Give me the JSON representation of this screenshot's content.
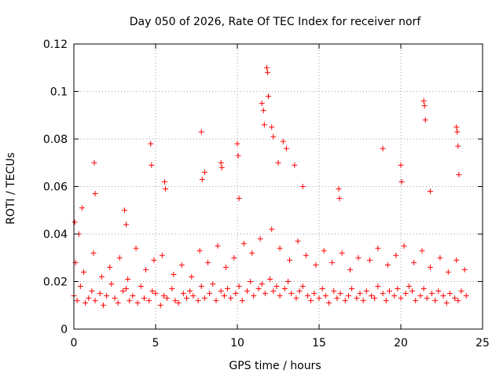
{
  "chart_data": {
    "type": "scatter",
    "title": "Day 050 of 2026, Rate Of TEC Index for receiver norf",
    "xlabel": "GPS time / hours",
    "ylabel": "ROTI / TECUs",
    "xlim": [
      0,
      25
    ],
    "ylim": [
      0,
      0.12
    ],
    "x_ticks": [
      0,
      5,
      10,
      15,
      20,
      25
    ],
    "x_tick_labels": [
      "0",
      "5",
      "10",
      "15",
      "20",
      "25"
    ],
    "y_ticks": [
      0,
      0.02,
      0.04,
      0.06,
      0.08,
      0.1,
      0.12
    ],
    "y_tick_labels": [
      "0",
      "0.02",
      "0.04",
      "0.06",
      "0.08",
      "0.1",
      "0.12"
    ],
    "grid": true,
    "marker": "+",
    "marker_color": "#ff0000",
    "series": [
      {
        "name": "ROTI",
        "x": [
          0.0,
          0.2,
          0.4,
          0.7,
          0.9,
          1.1,
          1.3,
          1.6,
          1.8,
          2.0,
          2.3,
          2.5,
          2.7,
          3.0,
          3.2,
          3.4,
          3.6,
          3.9,
          4.1,
          4.3,
          4.6,
          4.8,
          5.0,
          5.3,
          5.5,
          5.7,
          6.0,
          6.2,
          6.4,
          6.7,
          6.9,
          7.1,
          7.3,
          7.6,
          7.8,
          8.0,
          8.3,
          8.5,
          8.7,
          9.0,
          9.2,
          9.4,
          9.6,
          9.9,
          10.1,
          10.3,
          10.6,
          10.8,
          11.0,
          11.3,
          11.5,
          11.7,
          12.0,
          12.2,
          12.4,
          12.6,
          12.9,
          13.1,
          13.3,
          13.6,
          13.8,
          14.0,
          14.3,
          14.5,
          14.7,
          15.0,
          15.2,
          15.4,
          15.6,
          15.9,
          16.1,
          16.3,
          16.6,
          16.8,
          17.0,
          17.3,
          17.5,
          17.7,
          17.9,
          18.2,
          18.4,
          18.6,
          18.9,
          19.1,
          19.3,
          19.6,
          19.8,
          20.0,
          20.3,
          20.5,
          20.7,
          20.9,
          21.2,
          21.4,
          21.6,
          21.9,
          22.1,
          22.3,
          22.6,
          22.8,
          23.0,
          23.3,
          23.5,
          23.7,
          24.0,
          0.1,
          0.6,
          1.2,
          1.7,
          2.2,
          2.8,
          3.3,
          3.8,
          4.4,
          4.9,
          5.4,
          6.1,
          6.6,
          7.2,
          7.7,
          8.2,
          8.8,
          9.3,
          9.8,
          10.4,
          10.9,
          11.4,
          12.1,
          12.6,
          13.2,
          13.7,
          14.2,
          14.8,
          15.3,
          15.8,
          16.4,
          16.9,
          17.4,
          18.1,
          18.6,
          19.2,
          19.7,
          20.2,
          20.8,
          21.3,
          21.8,
          22.4,
          22.9,
          23.4,
          23.9,
          0.05,
          0.3,
          0.5,
          1.25,
          1.3,
          3.1,
          3.2,
          4.7,
          4.75,
          5.55,
          5.6,
          7.8,
          7.85,
          8.0,
          9.0,
          9.05,
          10.0,
          10.05,
          10.1,
          11.5,
          11.6,
          11.65,
          11.8,
          11.85,
          11.9,
          12.1,
          12.2,
          12.5,
          12.8,
          13.0,
          13.5,
          14.0,
          16.2,
          16.25,
          18.9,
          20.0,
          20.05,
          21.4,
          21.45,
          21.5,
          21.8,
          23.4,
          23.45,
          23.5,
          23.55
        ],
        "y": [
          0.014,
          0.012,
          0.018,
          0.011,
          0.013,
          0.016,
          0.012,
          0.015,
          0.01,
          0.014,
          0.019,
          0.013,
          0.011,
          0.016,
          0.017,
          0.012,
          0.014,
          0.011,
          0.018,
          0.013,
          0.012,
          0.016,
          0.015,
          0.01,
          0.014,
          0.013,
          0.017,
          0.012,
          0.011,
          0.015,
          0.013,
          0.016,
          0.014,
          0.012,
          0.018,
          0.013,
          0.015,
          0.019,
          0.012,
          0.016,
          0.014,
          0.017,
          0.013,
          0.015,
          0.018,
          0.012,
          0.016,
          0.02,
          0.014,
          0.017,
          0.019,
          0.015,
          0.021,
          0.016,
          0.018,
          0.014,
          0.017,
          0.02,
          0.015,
          0.013,
          0.016,
          0.018,
          0.014,
          0.012,
          0.015,
          0.013,
          0.017,
          0.014,
          0.011,
          0.016,
          0.013,
          0.015,
          0.012,
          0.014,
          0.017,
          0.013,
          0.015,
          0.012,
          0.016,
          0.014,
          0.013,
          0.018,
          0.015,
          0.012,
          0.016,
          0.014,
          0.017,
          0.013,
          0.015,
          0.018,
          0.016,
          0.012,
          0.014,
          0.017,
          0.013,
          0.015,
          0.012,
          0.016,
          0.014,
          0.011,
          0.015,
          0.013,
          0.012,
          0.016,
          0.014,
          0.028,
          0.024,
          0.032,
          0.022,
          0.026,
          0.03,
          0.021,
          0.034,
          0.025,
          0.029,
          0.031,
          0.023,
          0.027,
          0.022,
          0.033,
          0.028,
          0.035,
          0.026,
          0.03,
          0.036,
          0.032,
          0.038,
          0.042,
          0.034,
          0.029,
          0.037,
          0.031,
          0.027,
          0.033,
          0.028,
          0.032,
          0.025,
          0.03,
          0.029,
          0.034,
          0.027,
          0.031,
          0.035,
          0.028,
          0.033,
          0.026,
          0.03,
          0.024,
          0.029,
          0.025,
          0.045,
          0.04,
          0.051,
          0.07,
          0.057,
          0.05,
          0.044,
          0.078,
          0.069,
          0.062,
          0.059,
          0.083,
          0.063,
          0.066,
          0.07,
          0.068,
          0.078,
          0.073,
          0.055,
          0.095,
          0.092,
          0.086,
          0.11,
          0.108,
          0.098,
          0.085,
          0.081,
          0.07,
          0.079,
          0.076,
          0.069,
          0.06,
          0.059,
          0.055,
          0.076,
          0.069,
          0.062,
          0.096,
          0.094,
          0.088,
          0.058,
          0.085,
          0.083,
          0.077,
          0.065
        ]
      }
    ]
  }
}
